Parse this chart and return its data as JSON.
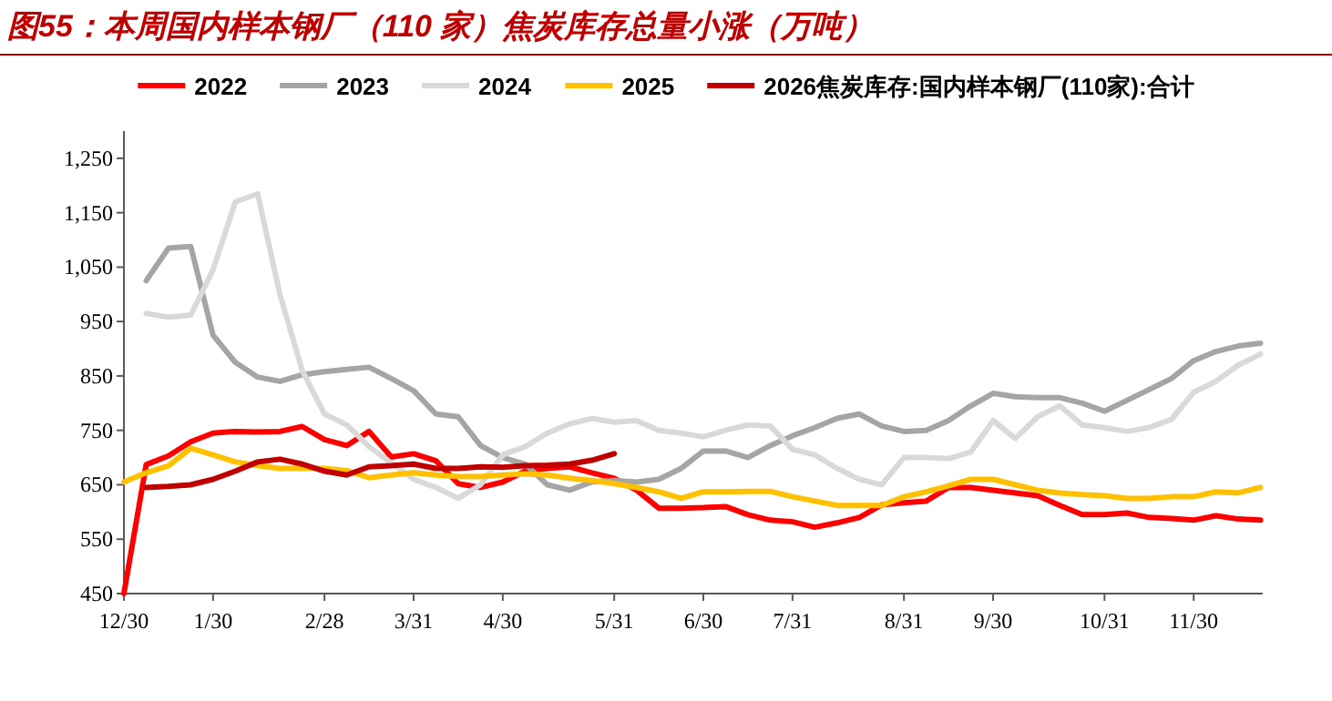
{
  "chart_data": {
    "type": "line",
    "title": "图55：本周国内样本钢厂（110 家）焦炭库存总量小涨（万吨）",
    "categories": [
      "12/30",
      null,
      null,
      null,
      "1/30",
      null,
      null,
      null,
      null,
      "2/28",
      null,
      null,
      null,
      "3/31",
      null,
      null,
      null,
      "4/30",
      null,
      null,
      null,
      null,
      "5/31",
      null,
      null,
      null,
      "6/30",
      null,
      null,
      null,
      "7/31",
      null,
      null,
      null,
      null,
      "8/31",
      null,
      null,
      null,
      "9/30",
      null,
      null,
      null,
      null,
      "10/31",
      null,
      null,
      null,
      "11/30",
      null,
      null,
      null
    ],
    "ylim": [
      450,
      1300
    ],
    "yticks": [
      {
        "value": 450,
        "label": "450"
      },
      {
        "value": 550,
        "label": "550"
      },
      {
        "value": 650,
        "label": "650"
      },
      {
        "value": 750,
        "label": "750"
      },
      {
        "value": 850,
        "label": "850"
      },
      {
        "value": 950,
        "label": "950"
      },
      {
        "value": 1050,
        "label": "1,050"
      },
      {
        "value": 1150,
        "label": "1,150"
      },
      {
        "value": 1250,
        "label": "1,250"
      }
    ],
    "grid": false,
    "legend": "top",
    "marker": "none",
    "line_style": "solid",
    "series": [
      {
        "name": "2022",
        "color": "#ff0000",
        "values": [
          450,
          687,
          703,
          729,
          745,
          748,
          747,
          748,
          757,
          733,
          722,
          748,
          701,
          707,
          694,
          652,
          645,
          655,
          675,
          680,
          683,
          672,
          662,
          640,
          607,
          607,
          608,
          610,
          595,
          585,
          582,
          572,
          580,
          590,
          613,
          617,
          620,
          645,
          645,
          640,
          635,
          630,
          612,
          595,
          595,
          598,
          590,
          588,
          585,
          593,
          587,
          585
        ]
      },
      {
        "name": "2023",
        "color": "#a5a5a5",
        "values": [
          null,
          1025,
          1085,
          1088,
          925,
          875,
          848,
          840,
          852,
          858,
          862,
          866,
          845,
          823,
          780,
          775,
          722,
          700,
          688,
          650,
          640,
          655,
          658,
          655,
          660,
          680,
          712,
          712,
          700,
          722,
          740,
          755,
          772,
          780,
          758,
          748,
          750,
          768,
          795,
          818,
          812,
          810,
          810,
          800,
          785,
          805,
          825,
          845,
          878,
          895,
          905,
          910
        ]
      },
      {
        "name": "2024",
        "color": "#d9d9d9",
        "values": [
          null,
          965,
          958,
          962,
          1045,
          1170,
          1185,
          1000,
          860,
          780,
          760,
          720,
          690,
          660,
          645,
          625,
          650,
          705,
          720,
          745,
          762,
          772,
          765,
          768,
          750,
          745,
          738,
          750,
          760,
          758,
          715,
          705,
          680,
          660,
          650,
          700,
          700,
          698,
          710,
          768,
          735,
          775,
          795,
          760,
          755,
          748,
          755,
          770,
          820,
          840,
          870,
          890
        ]
      },
      {
        "name": "2025",
        "color": "#ffc000",
        "values": [
          655,
          672,
          685,
          717,
          705,
          692,
          685,
          680,
          680,
          680,
          676,
          663,
          668,
          672,
          668,
          665,
          665,
          668,
          670,
          668,
          662,
          658,
          652,
          645,
          637,
          625,
          637,
          637,
          638,
          638,
          628,
          620,
          612,
          612,
          612,
          628,
          637,
          648,
          660,
          660,
          650,
          640,
          635,
          632,
          630,
          625,
          625,
          628,
          628,
          637,
          635,
          645
        ]
      },
      {
        "name": "2026焦炭库存:国内样本钢厂(110家):合计",
        "color": "#c00000",
        "values": [
          null,
          645,
          647,
          650,
          660,
          675,
          692,
          697,
          688,
          675,
          668,
          683,
          685,
          688,
          680,
          680,
          683,
          682,
          685,
          686,
          688,
          695,
          707,
          null,
          null,
          null,
          null,
          null,
          null,
          null,
          null,
          null,
          null,
          null,
          null,
          null,
          null,
          null,
          null,
          null,
          null,
          null,
          null,
          null,
          null,
          null,
          null,
          null,
          null,
          null,
          null,
          null
        ]
      }
    ]
  }
}
